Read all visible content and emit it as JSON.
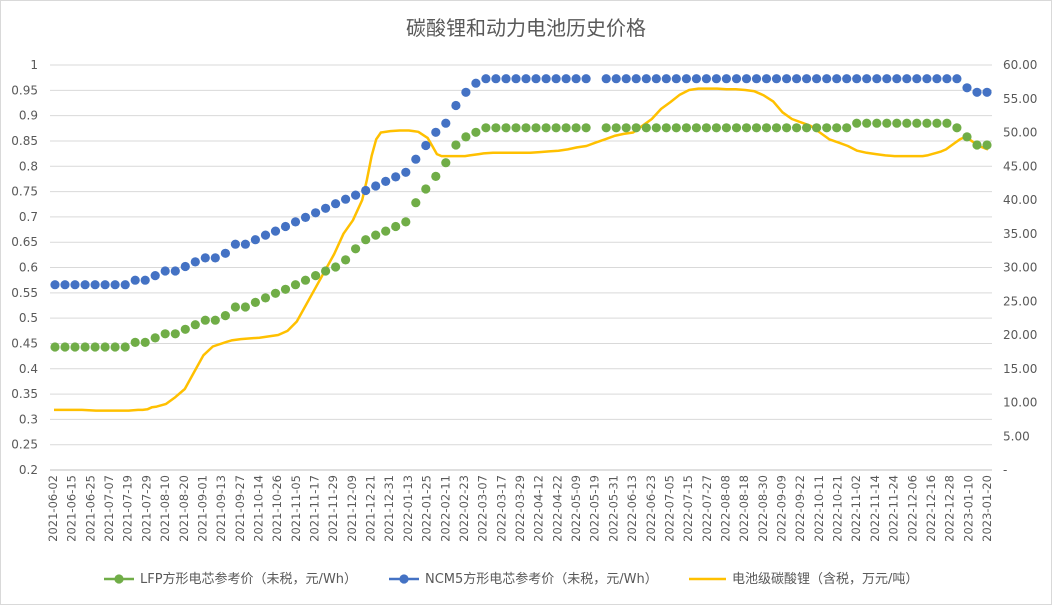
{
  "chart_data": {
    "type": "line",
    "title": "碳酸锂和动力电池历史价格",
    "xlabel": "",
    "ylabel": "",
    "y2label": "",
    "ylim": [
      0.2,
      1.0
    ],
    "y2lim": [
      0,
      60
    ],
    "y_ticks": [
      "0.2",
      "0.25",
      "0.3",
      "0.35",
      "0.4",
      "0.45",
      "0.5",
      "0.55",
      "0.6",
      "0.65",
      "0.7",
      "0.75",
      "0.8",
      "0.85",
      "0.9",
      "0.95",
      "1"
    ],
    "y2_ticks": [
      "-",
      "5.00",
      "10.00",
      "15.00",
      "20.00",
      "25.00",
      "30.00",
      "35.00",
      "40.00",
      "45.00",
      "50.00",
      "55.00",
      "60.00"
    ],
    "x_ticks": [
      "2021-06-02",
      "2021-06-15",
      "2021-06-25",
      "2021-07-07",
      "2021-07-19",
      "2021-07-29",
      "2021-08-10",
      "2021-08-20",
      "2021-09-01",
      "2021-09-13",
      "2021-09-27",
      "2021-10-14",
      "2021-10-26",
      "2021-11-05",
      "2021-11-17",
      "2021-11-29",
      "2021-12-09",
      "2021-12-21",
      "2021-12-31",
      "2022-01-13",
      "2022-01-25",
      "2022-02-11",
      "2022-02-23",
      "2022-03-07",
      "2022-03-17",
      "2022-03-29",
      "2022-04-12",
      "2022-04-22",
      "2022-05-09",
      "2022-05-19",
      "2022-05-31",
      "2022-06-13",
      "2022-06-23",
      "2022-07-05",
      "2022-07-15",
      "2022-07-27",
      "2022-08-08",
      "2022-08-18",
      "2022-08-30",
      "2022-09-09",
      "2022-09-22",
      "2022-10-11",
      "2022-10-21",
      "2022-11-02",
      "2022-11-14",
      "2022-11-24",
      "2022-12-06",
      "2022-12-16",
      "2022-12-28",
      "2023-01-10",
      "2023-01-20"
    ],
    "legend_position": "bottom",
    "grid": "horizontal",
    "series": [
      {
        "name": "LFP方形电芯参考价（未税，元/Wh）",
        "kind": "scatter",
        "axis": "left",
        "color": "#70ad47",
        "values": [
          0.443,
          0.443,
          0.443,
          0.443,
          0.443,
          0.443,
          0.443,
          0.443,
          0.452,
          0.452,
          0.461,
          0.469,
          0.469,
          0.478,
          0.487,
          0.496,
          0.496,
          0.505,
          0.522,
          0.522,
          0.531,
          0.54,
          0.549,
          0.557,
          0.566,
          0.575,
          0.584,
          0.593,
          0.601,
          0.615,
          0.637,
          0.655,
          0.664,
          0.672,
          0.681,
          0.69,
          0.728,
          0.755,
          0.78,
          0.807,
          0.842,
          0.858,
          0.867,
          0.876,
          0.876,
          0.876,
          0.876,
          0.876,
          0.876,
          0.876,
          0.876,
          0.876,
          0.876,
          0.876,
          null,
          0.876,
          0.876,
          0.876,
          0.876,
          0.876,
          0.876,
          0.876,
          0.876,
          0.876,
          0.876,
          0.876,
          0.876,
          0.876,
          0.876,
          0.876,
          0.876,
          0.876,
          0.876,
          0.876,
          0.876,
          0.876,
          0.876,
          0.876,
          0.876,
          0.876,
          0.885,
          0.885,
          0.885,
          0.885,
          0.885,
          0.885,
          0.885,
          0.885,
          0.885,
          0.885,
          0.876,
          0.858,
          0.842,
          0.842
        ]
      },
      {
        "name": "NCM5方形电芯参考价（未税，元/Wh）",
        "kind": "scatter",
        "axis": "left",
        "color": "#4472c4",
        "values": [
          0.566,
          0.566,
          0.566,
          0.566,
          0.566,
          0.566,
          0.566,
          0.566,
          0.575,
          0.575,
          0.584,
          0.593,
          0.593,
          0.602,
          0.611,
          0.619,
          0.619,
          0.628,
          0.646,
          0.646,
          0.655,
          0.664,
          0.672,
          0.681,
          0.69,
          0.699,
          0.708,
          0.717,
          0.726,
          0.735,
          0.743,
          0.752,
          0.761,
          0.77,
          0.779,
          0.788,
          0.814,
          0.841,
          0.867,
          0.885,
          0.92,
          0.946,
          0.964,
          0.973,
          0.973,
          0.973,
          0.973,
          0.973,
          0.973,
          0.973,
          0.973,
          0.973,
          0.973,
          0.973,
          null,
          0.973,
          0.973,
          0.973,
          0.973,
          0.973,
          0.973,
          0.973,
          0.973,
          0.973,
          0.973,
          0.973,
          0.973,
          0.973,
          0.973,
          0.973,
          0.973,
          0.973,
          0.973,
          0.973,
          0.973,
          0.973,
          0.973,
          0.973,
          0.973,
          0.973,
          0.973,
          0.973,
          0.973,
          0.973,
          0.973,
          0.973,
          0.973,
          0.973,
          0.973,
          0.973,
          0.973,
          0.955,
          0.946,
          0.946
        ]
      },
      {
        "name": "电池级碳酸锂（含税，万元/吨）",
        "kind": "line",
        "axis": "right",
        "color": "#ffc000",
        "x": [
          0,
          0.03,
          0.045,
          0.08,
          0.09,
          0.095,
          0.1,
          0.105,
          0.11,
          0.12,
          0.13,
          0.14,
          0.15,
          0.16,
          0.17,
          0.185,
          0.19,
          0.2,
          0.21,
          0.22,
          0.23,
          0.24,
          0.25,
          0.26,
          0.28,
          0.3,
          0.31,
          0.32,
          0.33,
          0.335,
          0.34,
          0.345,
          0.35,
          0.36,
          0.37,
          0.38,
          0.385,
          0.39,
          0.4,
          0.405,
          0.41,
          0.415,
          0.42,
          0.425,
          0.43,
          0.44,
          0.445,
          0.45,
          0.455,
          0.46,
          0.47,
          0.48,
          0.49,
          0.5,
          0.51,
          0.52,
          0.53,
          0.54,
          0.55,
          0.56,
          0.57,
          0.58,
          0.59,
          0.6,
          0.61,
          0.62,
          0.63,
          0.64,
          0.65,
          0.66,
          0.67,
          0.68,
          0.69,
          0.7,
          0.71,
          0.72,
          0.73,
          0.74,
          0.75,
          0.76,
          0.77,
          0.78,
          0.79,
          0.8,
          0.81,
          0.82,
          0.83,
          0.84,
          0.85,
          0.86,
          0.87,
          0.88,
          0.89,
          0.9,
          0.91,
          0.92,
          0.93,
          0.935,
          0.94,
          0.945,
          0.95,
          0.955,
          0.96,
          0.965,
          0.97,
          0.975,
          0.98,
          0.985,
          0.99,
          1.0
        ],
        "values": [
          8.9,
          8.9,
          8.8,
          8.8,
          8.9,
          8.9,
          9.0,
          9.3,
          9.4,
          9.8,
          10.8,
          12.0,
          14.5,
          17.0,
          18.3,
          19.0,
          19.2,
          19.4,
          19.5,
          19.6,
          19.8,
          20.0,
          20.6,
          22.0,
          27.0,
          32.0,
          35.0,
          37.0,
          40.0,
          43.0,
          46.5,
          49.0,
          50.0,
          50.2,
          50.3,
          50.3,
          50.2,
          50.1,
          49.2,
          48.0,
          46.8,
          46.5,
          46.5,
          46.5,
          46.5,
          46.5,
          46.6,
          46.7,
          46.8,
          46.9,
          47.0,
          47.0,
          47.0,
          47.0,
          47.0,
          47.1,
          47.2,
          47.3,
          47.5,
          47.8,
          48.0,
          48.5,
          49.0,
          49.5,
          49.8,
          50.0,
          51.0,
          52.0,
          53.5,
          54.5,
          55.6,
          56.3,
          56.5,
          56.5,
          56.5,
          56.4,
          56.4,
          56.3,
          56.1,
          55.5,
          54.6,
          53.0,
          52.0,
          51.5,
          51.0,
          50.0,
          49.0,
          48.5,
          48.0,
          47.3,
          47.0,
          46.8,
          46.6,
          46.5,
          46.5,
          46.5,
          46.5,
          46.6,
          46.8,
          47.0,
          47.2,
          47.5,
          48.0,
          48.5,
          49.0,
          49.3,
          49.0,
          48.5,
          48.0,
          47.5
        ]
      }
    ]
  },
  "colors": {
    "lfp": "#70ad47",
    "ncm": "#4472c4",
    "lithium": "#ffc000",
    "grid": "#d9d9d9",
    "text": "#595959"
  }
}
